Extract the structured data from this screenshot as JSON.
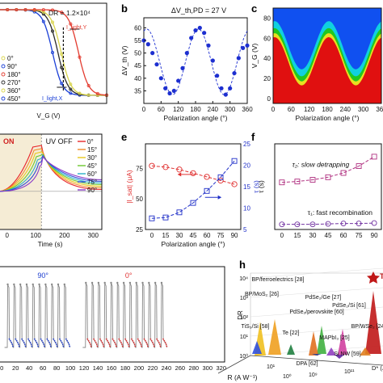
{
  "panels": [
    {
      "letter": "b"
    },
    {
      "letter": "c"
    },
    {
      "letter": "e"
    },
    {
      "letter": "f"
    },
    {
      "letter": "h"
    }
  ],
  "chart_data": [
    {
      "panel": "a",
      "type": "line",
      "annotation": "DR = 1.2×10⁴",
      "xlabel": "V_G (V)",
      "labels": [
        "I_light,Y",
        "I_light,X"
      ],
      "legend": [
        "0°",
        "90°",
        "180°",
        "270°",
        "360°",
        "450°"
      ],
      "colors": [
        "#e33b2f",
        "#1a3fd6",
        "#d8d44b",
        "#2a2a2a"
      ]
    },
    {
      "panel": "b",
      "type": "scatter",
      "title": "ΔV_th,PD = 27 V",
      "xlabel": "Polarization angle (°)",
      "ylabel": "ΔV_th (V)",
      "x_ticks": [
        0,
        60,
        120,
        180,
        240,
        300,
        360
      ],
      "y_ticks": [
        35,
        40,
        45,
        50,
        55,
        60
      ],
      "xlim": [
        0,
        360
      ],
      "ylim": [
        30,
        64
      ],
      "x": [
        0,
        15,
        30,
        45,
        60,
        75,
        90,
        105,
        120,
        135,
        150,
        165,
        180,
        195,
        210,
        225,
        240,
        255,
        270,
        285,
        300,
        315,
        330,
        345,
        360
      ],
      "values": [
        55,
        53.5,
        50,
        45.5,
        40,
        36,
        34,
        35,
        39,
        44,
        50,
        56,
        59,
        60,
        58,
        53,
        47,
        41,
        36,
        33.5,
        36,
        42,
        48,
        52,
        53
      ],
      "color": "#1d2fd0"
    },
    {
      "panel": "c",
      "type": "heatmap",
      "xlabel": "Polarization angle (°)",
      "ylabel": "V_G (V)",
      "x_ticks": [
        0,
        60,
        120,
        180,
        240,
        300,
        360
      ],
      "y_ticks": [
        0,
        20,
        40,
        60,
        80
      ],
      "xlim": [
        0,
        360
      ],
      "ylim": [
        -5,
        90
      ],
      "boundary_x": [
        0,
        30,
        60,
        90,
        120,
        150,
        180,
        210,
        240,
        270,
        300,
        330,
        360
      ],
      "boundary_y": [
        36,
        30,
        18,
        13,
        22,
        40,
        62,
        54,
        36,
        22,
        18,
        26,
        38
      ],
      "colors": [
        "#e01010",
        "#e8e020",
        "#20c820",
        "#10d0e0",
        "#1050f0"
      ]
    },
    {
      "panel": "d",
      "type": "line",
      "labels": [
        "ON",
        "UV OFF"
      ],
      "xlabel": "Time (s)",
      "x_ticks": [
        0,
        100,
        200,
        300
      ],
      "legend": [
        "0°",
        "15°",
        "30°",
        "45°",
        "60°",
        "75°",
        "90°"
      ],
      "colors": [
        "#e8262a",
        "#f08a2a",
        "#e8c81c",
        "#6cc82c",
        "#2ab0c8",
        "#2a4ad8",
        "#8a3ac8"
      ]
    },
    {
      "panel": "e",
      "type": "line",
      "xlabel": "Polarization angle (°)",
      "ylabel_left": "|I_sat| (μA)",
      "ylabel_right": "τ (s)",
      "x_ticks": [
        0,
        15,
        30,
        45,
        60,
        75,
        90
      ],
      "y_ticks_left": [
        25,
        50,
        75
      ],
      "y_ticks_right": [
        5,
        10,
        15,
        20,
        25
      ],
      "xlim": [
        -7,
        97
      ],
      "ylim_left": [
        25,
        95
      ],
      "ylim_right": [
        5,
        25
      ],
      "x": [
        0,
        15,
        30,
        45,
        60,
        75,
        90
      ],
      "series": [
        {
          "values": [
            77,
            76,
            74,
            71,
            68,
            65,
            62
          ],
          "axis": "left",
          "color": "#e03030"
        },
        {
          "values": [
            7.6,
            7.8,
            9.0,
            11.2,
            14.0,
            17.2,
            21.0
          ],
          "axis": "right",
          "color": "#2030c8"
        }
      ]
    },
    {
      "panel": "f",
      "type": "line",
      "ylabel": "τ (s)",
      "x_ticks": [
        0,
        15,
        30,
        45,
        60,
        75,
        90
      ],
      "xlim": [
        -7,
        97
      ],
      "ylim": [
        0,
        100
      ],
      "x": [
        0,
        15,
        30,
        45,
        60,
        75,
        90
      ],
      "annotations": [
        "τ₂: slow detrapping",
        "τ₁: fast recombination"
      ],
      "series": [
        {
          "name": "τ₂: slow detrapping",
          "values": [
            55,
            56,
            58,
            61,
            66,
            74,
            85
          ],
          "color": "#b03080"
        },
        {
          "name": "τ₁: fast recombination",
          "values": [
            6,
            6,
            6,
            6.5,
            7,
            7,
            7.5
          ],
          "color": "#7030a0"
        }
      ]
    },
    {
      "panel": "g",
      "type": "line",
      "annotations": [
        "90°",
        "0°"
      ],
      "x_ticks": [
        0,
        20,
        40,
        60,
        80,
        100,
        120,
        140,
        160,
        180,
        200,
        220,
        240,
        260,
        280,
        300,
        320
      ],
      "colors": [
        "#2040d0",
        "#888888",
        "#e03030"
      ]
    },
    {
      "panel": "h",
      "type": "bar",
      "ylabel": "DR",
      "xlabel": "R (A W⁻¹)",
      "y_ticks": [
        "10⁴",
        "10³",
        "10²",
        "10¹",
        "10⁰"
      ],
      "x_ticks": [
        "10⁰",
        "10¹"
      ],
      "depth_ticks": [
        "10⁹",
        "10¹¹"
      ],
      "depth_label": "D* (Jones)",
      "categories": [
        "Th C",
        "BP/ferroelectrics [28]",
        "BP/MoS₂ [26]",
        "PdSe₂/Ge [27]",
        "PdSe₂/Si [61]",
        "PdSe₂/perovskite [60]",
        "TiS₃/Si [58]",
        "Te [22]",
        "MAPbI₃ [25]",
        "DPA [62]",
        "Si NW [59]",
        "BP/WSe₂ [24]"
      ],
      "colors": [
        "#c01818",
        "#f0a020",
        "#f0c020",
        "#40b040",
        "#d040a0",
        "#e07020",
        "#3050e0",
        "#208040",
        "#9040c0",
        "#2040a0",
        "#6020a0",
        "#e08020"
      ]
    }
  ]
}
